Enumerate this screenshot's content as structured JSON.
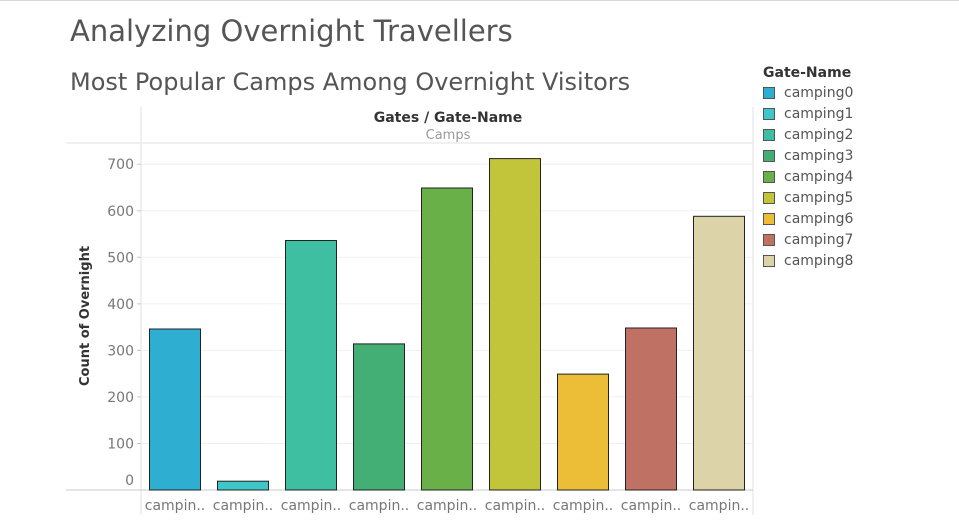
{
  "dashboard": {
    "title": "Analyzing Overnight Travellers"
  },
  "chart_data": {
    "type": "bar",
    "title": "Most Popular Camps Among Overnight Visitors",
    "column_header": "Gates / Gate-Name",
    "column_subheader": "Camps",
    "xlabel": "",
    "ylabel": "Count of Overnight",
    "ylim": [
      0,
      740
    ],
    "yticks": [
      0,
      100,
      200,
      300,
      400,
      500,
      600,
      700
    ],
    "grid": true,
    "legend_position": "right",
    "legend_title": "Gate-Name",
    "categories": [
      "camping0",
      "camping1",
      "camping2",
      "camping3",
      "camping4",
      "camping5",
      "camping6",
      "camping7",
      "camping8"
    ],
    "tick_labels": [
      "campin..",
      "campin..",
      "campin..",
      "campin..",
      "campin..",
      "campin..",
      "campin..",
      "campin..",
      "campin.."
    ],
    "values": [
      346,
      19,
      536,
      314,
      649,
      712,
      249,
      348,
      588
    ],
    "colors": [
      "#2eaed0",
      "#3fc6c9",
      "#3fbfa2",
      "#43af74",
      "#6ab048",
      "#c2c43a",
      "#ecbe38",
      "#bf7264",
      "#dcd4a8"
    ]
  }
}
